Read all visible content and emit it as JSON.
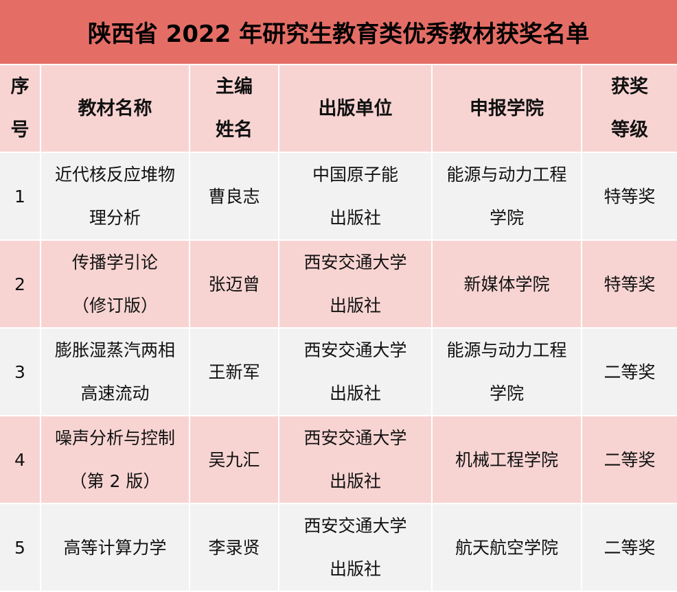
{
  "title": "陕西省 2022 年研究生教育类优秀教材获奖名单",
  "colors": {
    "title_bg": "#e46e66",
    "header_bg": "#f7d4d2",
    "row_odd_bg": "#f2f2f2",
    "row_even_bg": "#f7d4d2"
  },
  "headers": [
    "序\n号",
    "教材名称",
    "主编\n姓名",
    "出版单位",
    "申报学院",
    "获奖\n等级"
  ],
  "rows": [
    [
      "1",
      "近代核反应堆物\n理分析",
      "曹良志",
      "中国原子能\n出版社",
      "能源与动力工程\n学院",
      "特等奖"
    ],
    [
      "2",
      "传播学引论\n（修订版）",
      "张迈曾",
      "西安交通大学\n出版社",
      "新媒体学院",
      "特等奖"
    ],
    [
      "3",
      "膨胀湿蒸汽两相\n高速流动",
      "王新军",
      "西安交通大学\n出版社",
      "能源与动力工程\n学院",
      "二等奖"
    ],
    [
      "4",
      "噪声分析与控制\n（第 2 版）",
      "吴九汇",
      "西安交通大学\n出版社",
      "机械工程学院",
      "二等奖"
    ],
    [
      "5",
      "高等计算力学",
      "李录贤",
      "西安交通大学\n出版社",
      "航天航空学院",
      "二等奖"
    ]
  ]
}
